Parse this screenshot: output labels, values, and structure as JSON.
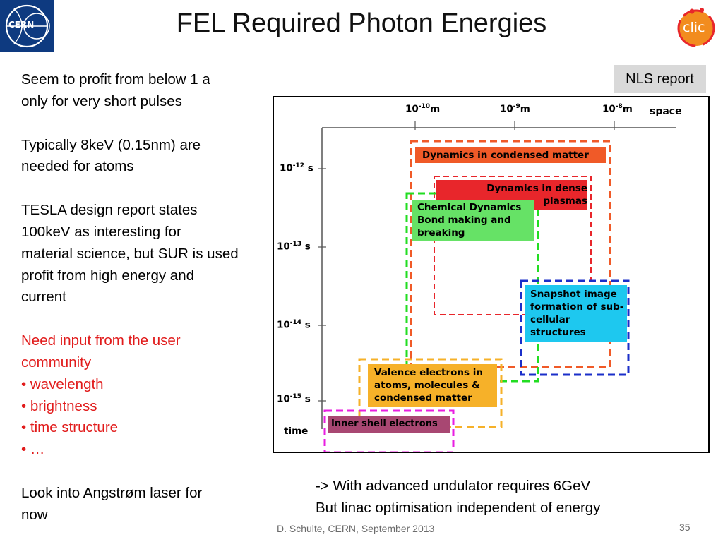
{
  "slide": {
    "title": "FEL Required Photon Energies",
    "nls_label": "NLS report",
    "body": {
      "p1": [
        "Seem to profit from below 1 a",
        "only for very short pulses"
      ],
      "p2": [
        "Typically 8keV (0.15nm) are",
        "needed for atoms"
      ],
      "p3": [
        "TESLA design report states",
        "100keV as interesting for",
        "material science, but SUR is used",
        "profit from high energy and",
        "current"
      ],
      "p4": [
        "Need input from the user",
        "community"
      ],
      "bullets": [
        "• wavelength",
        "• brightness",
        "• time structure",
        "• …"
      ],
      "p5": [
        "Look into Angstrøm laser for",
        "now"
      ]
    },
    "bottom_note": [
      "-> With advanced undulator requires 6GeV",
      "But linac optimisation independent of energy"
    ],
    "footer": "D. Schulte, CERN, September 2013",
    "page_number": "35",
    "logos": {
      "cern_text": "CERN",
      "clic_text": "clic"
    }
  },
  "figure": {
    "space_axis": {
      "label": "space",
      "ticks": [
        {
          "base": "10",
          "exp": "-10",
          "unit": "m"
        },
        {
          "base": "10",
          "exp": "-9",
          "unit": "m"
        },
        {
          "base": "10",
          "exp": "-8",
          "unit": "m"
        }
      ]
    },
    "time_axis": {
      "label": "time",
      "ticks": [
        {
          "base": "10",
          "exp": "-12",
          "unit": " s"
        },
        {
          "base": "10",
          "exp": "-13",
          "unit": " s"
        },
        {
          "base": "10",
          "exp": "-14",
          "unit": " s"
        },
        {
          "base": "10",
          "exp": "-15",
          "unit": " s"
        }
      ]
    },
    "regions": [
      {
        "label": "Dynamics in condensed matter",
        "color": "#f05a28",
        "border": "#f05a28"
      },
      {
        "label": "Dynamics in dense plasmas",
        "color": "#e8262b",
        "border": "#e8262b"
      },
      {
        "label": "Chemical Dynamics Bond making and breaking",
        "color": "#66e266",
        "border": "#22dd22"
      },
      {
        "label": "Snapshot image formation of sub-cellular structures",
        "color": "#1ec8ef",
        "border": "#1b2fc9"
      },
      {
        "label": "Valence electrons in atoms, molecules & condensed matter",
        "color": "#f6b129",
        "border": "#f6b129"
      },
      {
        "label": "Inner shell electrons",
        "color": "#a84772",
        "border": "#e81ee1"
      }
    ]
  }
}
